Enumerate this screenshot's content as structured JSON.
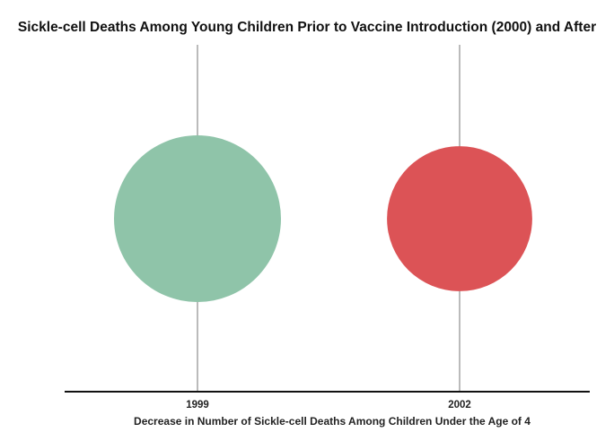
{
  "chart_data": {
    "type": "bubble",
    "title": "Sickle-cell Deaths Among Young Children Prior to Vaccine Introduction (2000) and After",
    "xlabel": "Decrease in Number of Sickle-cell Deaths Among Children Under the Age of 4",
    "ylabel": "",
    "categories": [
      "1999",
      "2002"
    ],
    "values": [
      185,
      140
    ],
    "colors": [
      "#8fc4a9",
      "#dc5356"
    ],
    "grid": true,
    "legend": "none"
  }
}
